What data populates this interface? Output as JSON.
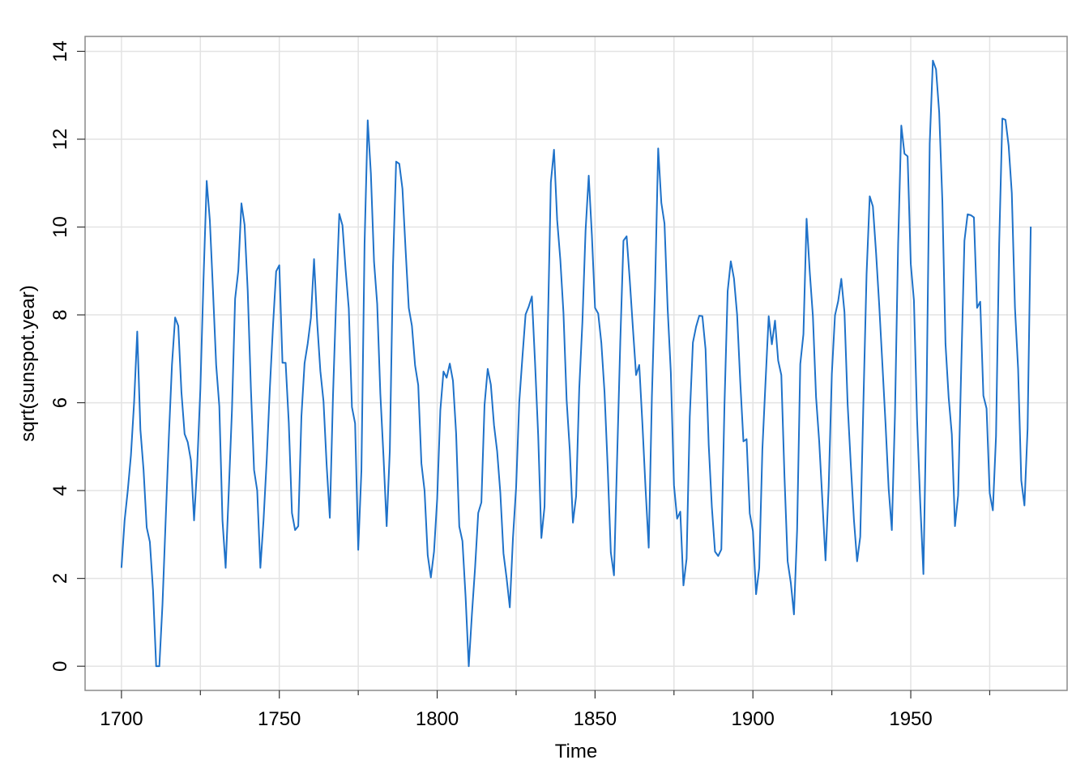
{
  "chart_data": {
    "type": "line",
    "x_label": "Time",
    "y_label": "sqrt(sunspot.year)",
    "color": "#1f72c9",
    "grid": true,
    "xlim": [
      1688.48,
      1999.52
    ],
    "ylim": [
      -0.55,
      14.34
    ],
    "xticks": [
      1700,
      1750,
      1800,
      1850,
      1900,
      1950
    ],
    "xminorticks": [
      1725,
      1775,
      1825,
      1875,
      1925,
      1975
    ],
    "yticks": [
      0,
      2,
      4,
      6,
      8,
      10,
      12,
      14
    ],
    "x": [
      1700,
      1701,
      1702,
      1703,
      1704,
      1705,
      1706,
      1707,
      1708,
      1709,
      1710,
      1711,
      1712,
      1713,
      1714,
      1715,
      1716,
      1717,
      1718,
      1719,
      1720,
      1721,
      1722,
      1723,
      1724,
      1725,
      1726,
      1727,
      1728,
      1729,
      1730,
      1731,
      1732,
      1733,
      1734,
      1735,
      1736,
      1737,
      1738,
      1739,
      1740,
      1741,
      1742,
      1743,
      1744,
      1745,
      1746,
      1747,
      1748,
      1749,
      1750,
      1751,
      1752,
      1753,
      1754,
      1755,
      1756,
      1757,
      1758,
      1759,
      1760,
      1761,
      1762,
      1763,
      1764,
      1765,
      1766,
      1767,
      1768,
      1769,
      1770,
      1771,
      1772,
      1773,
      1774,
      1775,
      1776,
      1777,
      1778,
      1779,
      1780,
      1781,
      1782,
      1783,
      1784,
      1785,
      1786,
      1787,
      1788,
      1789,
      1790,
      1791,
      1792,
      1793,
      1794,
      1795,
      1796,
      1797,
      1798,
      1799,
      1800,
      1801,
      1802,
      1803,
      1804,
      1805,
      1806,
      1807,
      1808,
      1809,
      1810,
      1811,
      1812,
      1813,
      1814,
      1815,
      1816,
      1817,
      1818,
      1819,
      1820,
      1821,
      1822,
      1823,
      1824,
      1825,
      1826,
      1827,
      1828,
      1829,
      1830,
      1831,
      1832,
      1833,
      1834,
      1835,
      1836,
      1837,
      1838,
      1839,
      1840,
      1841,
      1842,
      1843,
      1844,
      1845,
      1846,
      1847,
      1848,
      1849,
      1850,
      1851,
      1852,
      1853,
      1854,
      1855,
      1856,
      1857,
      1858,
      1859,
      1860,
      1861,
      1862,
      1863,
      1864,
      1865,
      1866,
      1867,
      1868,
      1869,
      1870,
      1871,
      1872,
      1873,
      1874,
      1875,
      1876,
      1877,
      1878,
      1879,
      1880,
      1881,
      1882,
      1883,
      1884,
      1885,
      1886,
      1887,
      1888,
      1889,
      1890,
      1891,
      1892,
      1893,
      1894,
      1895,
      1896,
      1897,
      1898,
      1899,
      1900,
      1901,
      1902,
      1903,
      1904,
      1905,
      1906,
      1907,
      1908,
      1909,
      1910,
      1911,
      1912,
      1913,
      1914,
      1915,
      1916,
      1917,
      1918,
      1919,
      1920,
      1921,
      1922,
      1923,
      1924,
      1925,
      1926,
      1927,
      1928,
      1929,
      1930,
      1931,
      1932,
      1933,
      1934,
      1935,
      1936,
      1937,
      1938,
      1939,
      1940,
      1941,
      1942,
      1943,
      1944,
      1945,
      1946,
      1947,
      1948,
      1949,
      1950,
      1951,
      1952,
      1953,
      1954,
      1955,
      1956,
      1957,
      1958,
      1959,
      1960,
      1961,
      1962,
      1963,
      1964,
      1965,
      1966,
      1967,
      1968,
      1969,
      1970,
      1971,
      1972,
      1973,
      1974,
      1975,
      1976,
      1977,
      1978,
      1979,
      1980,
      1981,
      1982,
      1983,
      1984,
      1985,
      1986,
      1987,
      1988
    ],
    "values": [
      2.24,
      3.32,
      4,
      4.8,
      6,
      7.62,
      5.39,
      4.47,
      3.16,
      2.83,
      1.73,
      0,
      0,
      1.41,
      3.32,
      5.2,
      6.86,
      7.94,
      7.75,
      6.24,
      5.29,
      5.1,
      4.69,
      3.32,
      4.58,
      6.32,
      8.83,
      11.05,
      10.15,
      8.54,
      6.86,
      5.92,
      3.32,
      2.24,
      4,
      5.83,
      8.37,
      9,
      10.54,
      10.05,
      8.54,
      6.32,
      4.47,
      4,
      2.24,
      3.32,
      4.69,
      6.32,
      7.75,
      8.99,
      9.13,
      6.91,
      6.91,
      5.54,
      3.49,
      3.1,
      3.19,
      5.69,
      6.9,
      7.35,
      7.93,
      9.27,
      7.82,
      6.72,
      6.03,
      4.57,
      3.38,
      6.15,
      8.35,
      10.3,
      10.04,
      9.03,
      8.15,
      5.9,
      5.53,
      2.65,
      4.45,
      9.62,
      12.43,
      11.22,
      9.21,
      8.25,
      6.2,
      4.77,
      3.19,
      4.91,
      9.1,
      11.49,
      11.44,
      10.87,
      9.48,
      8.16,
      7.75,
      6.85,
      6.4,
      4.62,
      4,
      2.53,
      2.02,
      2.61,
      3.81,
      5.83,
      6.71,
      6.57,
      6.89,
      6.5,
      5.3,
      3.18,
      2.85,
      1.58,
      0,
      1.18,
      2.24,
      3.49,
      3.73,
      5.95,
      6.77,
      6.41,
      5.49,
      4.89,
      3.95,
      2.57,
      2,
      1.34,
      2.92,
      4.07,
      6.02,
      7.04,
      8.01,
      8.19,
      8.42,
      6.91,
      5.24,
      2.92,
      3.63,
      7.54,
      11.02,
      11.76,
      10.16,
      9.26,
      8.04,
      6.06,
      4.92,
      3.27,
      3.87,
      6.33,
      7.84,
      9.92,
      11.17,
      9.81,
      8.16,
      8.03,
      7.36,
      6.24,
      4.54,
      2.59,
      2.07,
      4.76,
      7.4,
      9.69,
      9.79,
      8.79,
      7.69,
      6.63,
      6.86,
      5.52,
      4.04,
      2.7,
      6.13,
      8.6,
      11.79,
      10.55,
      10.08,
      8.14,
      6.69,
      4.12,
      3.36,
      3.52,
      1.84,
      2.45,
      5.68,
      7.37,
      7.73,
      7.98,
      7.97,
      7.22,
      5.04,
      3.62,
      2.61,
      2.51,
      2.66,
      5.97,
      8.54,
      9.22,
      8.83,
      8,
      6.47,
      5.12,
      5.17,
      3.48,
      3.08,
      1.64,
      2.24,
      4.94,
      6.48,
      7.97,
      7.33,
      7.87,
      6.96,
      6.63,
      4.31,
      2.39,
      1.9,
      1.18,
      3.1,
      6.88,
      7.56,
      10.19,
      8.98,
      7.97,
      6.13,
      5.11,
      3.77,
      2.41,
      4.09,
      6.66,
      7.99,
      8.31,
      8.82,
      8.06,
      5.97,
      4.6,
      3.33,
      2.39,
      2.95,
      6.01,
      8.93,
      10.7,
      10.47,
      9.42,
      8.23,
      6.89,
      5.53,
      4.04,
      3.1,
      5.76,
      9.62,
      12.31,
      11.67,
      11.61,
      9.16,
      8.33,
      5.61,
      3.73,
      2.1,
      6.16,
      11.9,
      13.79,
      13.59,
      12.61,
      10.6,
      7.34,
      6.12,
      5.28,
      3.19,
      3.89,
      6.86,
      9.69,
      10.29,
      10.27,
      10.22,
      8.16,
      8.3,
      6.16,
      5.87,
      3.94,
      3.55,
      5.24,
      9.62,
      12.47,
      12.44,
      11.85,
      10.77,
      8.16,
      6.77,
      4.23,
      3.66,
      5.41,
      10.01
    ]
  }
}
